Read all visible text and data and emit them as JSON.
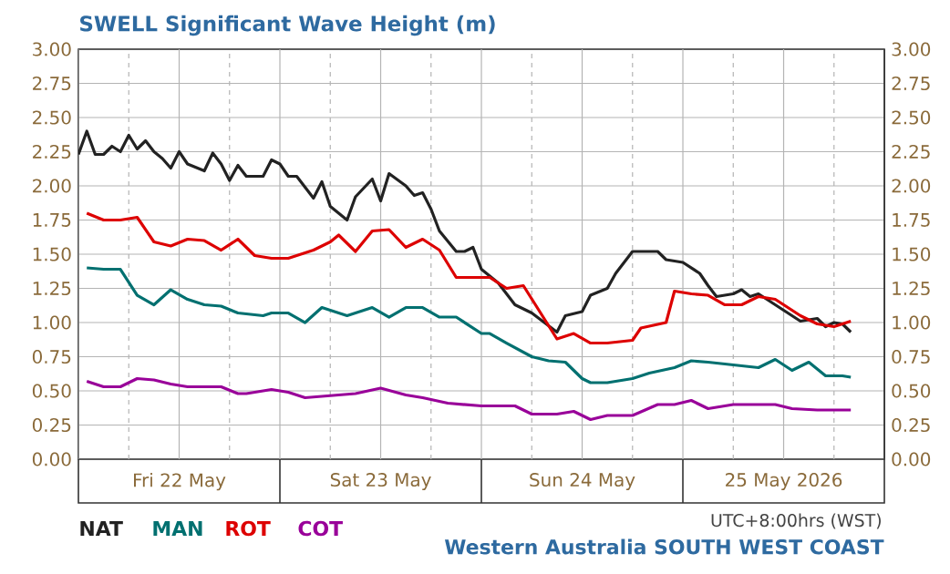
{
  "chart_data": {
    "type": "line",
    "title": "SWELL Significant Wave Height (m)",
    "xlim": [
      "2026-05-22T00:00",
      "2026-05-26T00:00"
    ],
    "xticks": [
      {
        "value": "2026-05-22T00:00",
        "label": null
      },
      {
        "value": "2026-05-22T06:00",
        "label": null
      },
      {
        "value": "2026-05-22T12:00",
        "label": "Fri 22 May"
      },
      {
        "value": "2026-05-22T18:00",
        "label": null
      },
      {
        "value": "2026-05-23T00:00",
        "label": null
      },
      {
        "value": "2026-05-23T06:00",
        "label": null
      },
      {
        "value": "2026-05-23T12:00",
        "label": "Sat 23 May"
      },
      {
        "value": "2026-05-23T18:00",
        "label": null
      },
      {
        "value": "2026-05-24T00:00",
        "label": null
      },
      {
        "value": "2026-05-24T06:00",
        "label": null
      },
      {
        "value": "2026-05-24T12:00",
        "label": "Sun 24 May"
      },
      {
        "value": "2026-05-24T18:00",
        "label": null
      },
      {
        "value": "2026-05-25T00:00",
        "label": null
      },
      {
        "value": "2026-05-25T06:00",
        "label": null
      },
      {
        "value": "2026-05-25T12:00",
        "label": "25 May 2026"
      },
      {
        "value": "2026-05-25T18:00",
        "label": null
      },
      {
        "value": "2026-05-26T00:00",
        "label": null
      }
    ],
    "ylim": [
      0,
      3
    ],
    "yticks": [
      {
        "value": 0,
        "label": "0.00"
      },
      {
        "value": 0.25,
        "label": "0.25"
      },
      {
        "value": 0.5,
        "label": "0.50"
      },
      {
        "value": 0.75,
        "label": "0.75"
      },
      {
        "value": 1,
        "label": "1.00"
      },
      {
        "value": 1.25,
        "label": "1.25"
      },
      {
        "value": 1.5,
        "label": "1.50"
      },
      {
        "value": 1.75,
        "label": "1.75"
      },
      {
        "value": 2,
        "label": "2.00"
      },
      {
        "value": 2.25,
        "label": "2.25"
      },
      {
        "value": 2.5,
        "label": "2.50"
      },
      {
        "value": 2.75,
        "label": "2.75"
      },
      {
        "value": 3,
        "label": "3.00"
      }
    ],
    "y2lim": [
      0,
      3
    ],
    "y2ticks": [
      {
        "value": 0,
        "label": "0.00"
      },
      {
        "value": 0.25,
        "label": "0.25"
      },
      {
        "value": 0.5,
        "label": "0.50"
      },
      {
        "value": 0.75,
        "label": "0.75"
      },
      {
        "value": 1,
        "label": "1.00"
      },
      {
        "value": 1.25,
        "label": "1.25"
      },
      {
        "value": 1.5,
        "label": "1.50"
      },
      {
        "value": 1.75,
        "label": "1.75"
      },
      {
        "value": 2,
        "label": "2.00"
      },
      {
        "value": 2.25,
        "label": "2.25"
      },
      {
        "value": 2.5,
        "label": "2.50"
      },
      {
        "value": 2.75,
        "label": "2.75"
      },
      {
        "value": 3,
        "label": "3.00"
      }
    ],
    "grid": true,
    "legend": "bottom left",
    "annotations": [
      "UTC+8:00hrs (WST)",
      "Western Australia SOUTH WEST COAST"
    ],
    "series": [
      {
        "name": "NAT",
        "color": "#222222",
        "x": [
          "2026-05-22T00:00",
          "2026-05-22T01:00",
          "2026-05-22T02:00",
          "2026-05-22T03:00",
          "2026-05-22T04:00",
          "2026-05-22T05:00",
          "2026-05-22T06:00",
          "2026-05-22T07:00",
          "2026-05-22T08:00",
          "2026-05-22T09:00",
          "2026-05-22T10:00",
          "2026-05-22T11:00",
          "2026-05-22T12:00",
          "2026-05-22T13:00",
          "2026-05-22T15:00",
          "2026-05-22T16:00",
          "2026-05-22T17:00",
          "2026-05-22T18:00",
          "2026-05-22T19:00",
          "2026-05-22T20:00",
          "2026-05-22T22:00",
          "2026-05-22T23:00",
          "2026-05-23T00:00",
          "2026-05-23T01:00",
          "2026-05-23T02:00",
          "2026-05-23T04:00",
          "2026-05-23T05:00",
          "2026-05-23T06:00",
          "2026-05-23T08:00",
          "2026-05-23T09:00",
          "2026-05-23T11:00",
          "2026-05-23T12:00",
          "2026-05-23T13:00",
          "2026-05-23T15:00",
          "2026-05-23T16:00",
          "2026-05-23T17:00",
          "2026-05-23T18:00",
          "2026-05-23T19:00",
          "2026-05-23T21:00",
          "2026-05-23T22:00",
          "2026-05-23T23:00",
          "2026-05-24T00:00",
          "2026-05-24T02:00",
          "2026-05-24T04:00",
          "2026-05-24T06:00",
          "2026-05-24T09:00",
          "2026-05-24T10:00",
          "2026-05-24T12:00",
          "2026-05-24T13:00",
          "2026-05-24T15:00",
          "2026-05-24T16:00",
          "2026-05-24T18:00",
          "2026-05-24T21:00",
          "2026-05-24T22:00",
          "2026-05-25T00:00",
          "2026-05-25T02:00",
          "2026-05-25T03:00",
          "2026-05-25T04:00",
          "2026-05-25T06:00",
          "2026-05-25T07:00",
          "2026-05-25T08:00",
          "2026-05-25T09:00",
          "2026-05-25T10:00",
          "2026-05-25T12:00",
          "2026-05-25T14:00",
          "2026-05-25T16:00",
          "2026-05-25T17:00",
          "2026-05-25T18:00",
          "2026-05-25T19:00",
          "2026-05-25T20:00"
        ],
        "values": [
          2.23,
          2.4,
          2.23,
          2.23,
          2.29,
          2.25,
          2.37,
          2.27,
          2.33,
          2.25,
          2.2,
          2.13,
          2.25,
          2.16,
          2.11,
          2.24,
          2.16,
          2.04,
          2.15,
          2.07,
          2.07,
          2.19,
          2.16,
          2.07,
          2.07,
          1.91,
          2.03,
          1.85,
          1.75,
          1.92,
          2.05,
          1.89,
          2.09,
          2.0,
          1.93,
          1.95,
          1.83,
          1.67,
          1.52,
          1.52,
          1.55,
          1.39,
          1.29,
          1.13,
          1.07,
          0.93,
          1.05,
          1.08,
          1.2,
          1.25,
          1.36,
          1.52,
          1.52,
          1.46,
          1.44,
          1.36,
          1.27,
          1.19,
          1.21,
          1.24,
          1.19,
          1.21,
          1.17,
          1.09,
          1.01,
          1.03,
          0.97,
          1.0,
          0.99,
          0.93
        ]
      },
      {
        "name": "MAN",
        "color": "#007070",
        "x": [
          "2026-05-22T01:00",
          "2026-05-22T03:00",
          "2026-05-22T05:00",
          "2026-05-22T07:00",
          "2026-05-22T09:00",
          "2026-05-22T11:00",
          "2026-05-22T13:00",
          "2026-05-22T15:00",
          "2026-05-22T17:00",
          "2026-05-22T19:00",
          "2026-05-22T22:00",
          "2026-05-22T23:00",
          "2026-05-23T01:00",
          "2026-05-23T03:00",
          "2026-05-23T05:00",
          "2026-05-23T08:00",
          "2026-05-23T11:00",
          "2026-05-23T13:00",
          "2026-05-23T15:00",
          "2026-05-23T17:00",
          "2026-05-23T19:00",
          "2026-05-23T21:00",
          "2026-05-24T00:00",
          "2026-05-24T01:00",
          "2026-05-24T03:00",
          "2026-05-24T06:00",
          "2026-05-24T08:00",
          "2026-05-24T10:00",
          "2026-05-24T12:00",
          "2026-05-24T13:00",
          "2026-05-24T15:00",
          "2026-05-24T18:00",
          "2026-05-24T20:00",
          "2026-05-24T23:00",
          "2026-05-25T01:00",
          "2026-05-25T03:00",
          "2026-05-25T06:00",
          "2026-05-25T09:00",
          "2026-05-25T11:00",
          "2026-05-25T13:00",
          "2026-05-25T15:00",
          "2026-05-25T17:00",
          "2026-05-25T19:00",
          "2026-05-25T20:00"
        ],
        "values": [
          1.4,
          1.39,
          1.39,
          1.2,
          1.13,
          1.24,
          1.17,
          1.13,
          1.12,
          1.07,
          1.05,
          1.07,
          1.07,
          1.0,
          1.11,
          1.05,
          1.11,
          1.04,
          1.11,
          1.11,
          1.04,
          1.04,
          0.92,
          0.92,
          0.85,
          0.75,
          0.72,
          0.71,
          0.59,
          0.56,
          0.56,
          0.59,
          0.63,
          0.67,
          0.72,
          0.71,
          0.69,
          0.67,
          0.73,
          0.65,
          0.71,
          0.61,
          0.61,
          0.6
        ]
      },
      {
        "name": "ROT",
        "color": "#dd0000",
        "x": [
          "2026-05-22T01:00",
          "2026-05-22T03:00",
          "2026-05-22T05:00",
          "2026-05-22T07:00",
          "2026-05-22T09:00",
          "2026-05-22T11:00",
          "2026-05-22T13:00",
          "2026-05-22T15:00",
          "2026-05-22T17:00",
          "2026-05-22T19:00",
          "2026-05-22T21:00",
          "2026-05-22T23:00",
          "2026-05-23T01:00",
          "2026-05-23T04:00",
          "2026-05-23T06:00",
          "2026-05-23T07:00",
          "2026-05-23T09:00",
          "2026-05-23T11:00",
          "2026-05-23T13:00",
          "2026-05-23T15:00",
          "2026-05-23T17:00",
          "2026-05-23T19:00",
          "2026-05-23T21:00",
          "2026-05-24T01:00",
          "2026-05-24T03:00",
          "2026-05-24T05:00",
          "2026-05-24T09:00",
          "2026-05-24T11:00",
          "2026-05-24T13:00",
          "2026-05-24T15:00",
          "2026-05-24T18:00",
          "2026-05-24T19:00",
          "2026-05-24T22:00",
          "2026-05-24T23:00",
          "2026-05-25T01:00",
          "2026-05-25T03:00",
          "2026-05-25T05:00",
          "2026-05-25T07:00",
          "2026-05-25T09:00",
          "2026-05-25T11:00",
          "2026-05-25T14:00",
          "2026-05-25T16:00",
          "2026-05-25T18:00",
          "2026-05-25T19:00",
          "2026-05-25T20:00"
        ],
        "values": [
          1.8,
          1.75,
          1.75,
          1.77,
          1.59,
          1.56,
          1.61,
          1.6,
          1.53,
          1.61,
          1.49,
          1.47,
          1.47,
          1.53,
          1.59,
          1.64,
          1.52,
          1.67,
          1.68,
          1.55,
          1.61,
          1.53,
          1.33,
          1.33,
          1.25,
          1.27,
          0.88,
          0.92,
          0.85,
          0.85,
          0.87,
          0.96,
          1.0,
          1.23,
          1.21,
          1.2,
          1.13,
          1.13,
          1.19,
          1.17,
          1.05,
          0.99,
          0.97,
          0.99,
          1.01
        ]
      },
      {
        "name": "COT",
        "color": "#990099",
        "x": [
          "2026-05-22T01:00",
          "2026-05-22T03:00",
          "2026-05-22T05:00",
          "2026-05-22T07:00",
          "2026-05-22T09:00",
          "2026-05-22T11:00",
          "2026-05-22T13:00",
          "2026-05-22T17:00",
          "2026-05-22T19:00",
          "2026-05-22T20:00",
          "2026-05-22T23:00",
          "2026-05-23T01:00",
          "2026-05-23T03:00",
          "2026-05-23T07:00",
          "2026-05-23T09:00",
          "2026-05-23T12:00",
          "2026-05-23T15:00",
          "2026-05-23T17:00",
          "2026-05-23T20:00",
          "2026-05-24T00:00",
          "2026-05-24T02:00",
          "2026-05-24T04:00",
          "2026-05-24T06:00",
          "2026-05-24T09:00",
          "2026-05-24T11:00",
          "2026-05-24T13:00",
          "2026-05-24T15:00",
          "2026-05-24T18:00",
          "2026-05-24T21:00",
          "2026-05-24T23:00",
          "2026-05-25T01:00",
          "2026-05-25T03:00",
          "2026-05-25T06:00",
          "2026-05-25T11:00",
          "2026-05-25T13:00",
          "2026-05-25T16:00",
          "2026-05-25T20:00"
        ],
        "values": [
          0.57,
          0.53,
          0.53,
          0.59,
          0.58,
          0.55,
          0.53,
          0.53,
          0.48,
          0.48,
          0.51,
          0.49,
          0.45,
          0.47,
          0.48,
          0.52,
          0.47,
          0.45,
          0.41,
          0.39,
          0.39,
          0.39,
          0.33,
          0.33,
          0.35,
          0.29,
          0.32,
          0.32,
          0.4,
          0.4,
          0.43,
          0.37,
          0.4,
          0.4,
          0.37,
          0.36,
          0.36
        ]
      }
    ]
  }
}
